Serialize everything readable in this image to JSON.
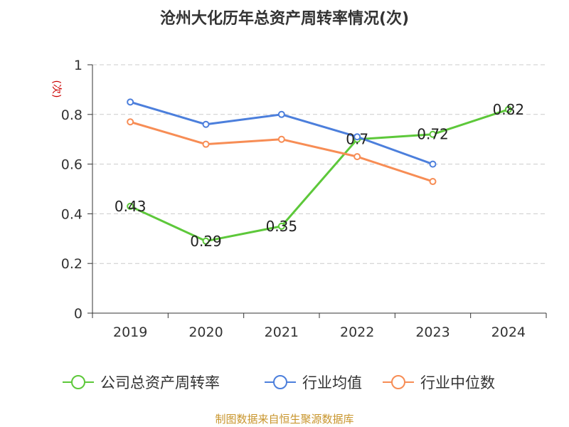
{
  "chart_data": {
    "type": "line",
    "title": "沧州大化历年总资产周转率情况(次)",
    "ylabel": "(次)",
    "ylim": [
      0,
      1
    ],
    "yticks": [
      0,
      0.2,
      0.4,
      0.6,
      0.8,
      1
    ],
    "ytick_labels": [
      "0",
      "0.2",
      "0.4",
      "0.6",
      "0.8",
      "1"
    ],
    "grid": true,
    "legend_position": "bottom",
    "categories": [
      "2019",
      "2020",
      "2021",
      "2022",
      "2023",
      "2024"
    ],
    "series": [
      {
        "name": "公司总资产周转率",
        "color": "#5dc83a",
        "values": [
          0.43,
          0.29,
          0.35,
          0.7,
          0.72,
          0.82
        ],
        "labels": [
          "0.43",
          "0.29",
          "0.35",
          "0.7",
          "0.72",
          "0.82"
        ],
        "show_labels": true
      },
      {
        "name": "行业均值",
        "color": "#4c7fdc",
        "values": [
          0.85,
          0.76,
          0.8,
          0.71,
          0.6,
          null
        ],
        "show_labels": false
      },
      {
        "name": "行业中位数",
        "color": "#f78d55",
        "values": [
          0.77,
          0.68,
          0.7,
          0.63,
          0.53,
          null
        ],
        "show_labels": false
      }
    ],
    "source": "制图数据来自恒生聚源数据库",
    "colors": {
      "title": "#333333",
      "axis": "#333333",
      "grid": "#cccccc",
      "ylabel": "#cc0000",
      "source": "#c8952c"
    }
  }
}
